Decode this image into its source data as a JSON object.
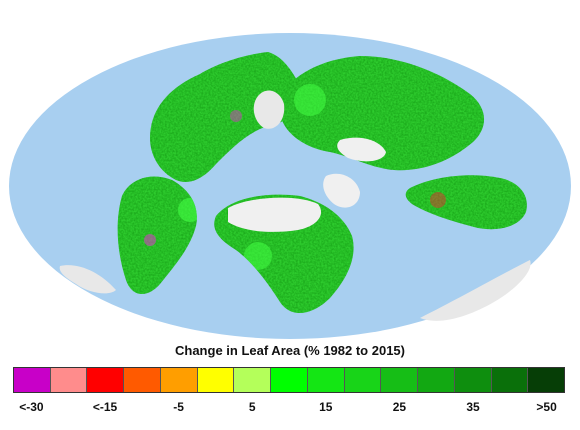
{
  "legend": {
    "title": "Change in Leaf Area (% 1982 to 2015)",
    "colors": [
      "#c800c8",
      "#ff8c8c",
      "#ff0000",
      "#ff5a00",
      "#ff9e00",
      "#ffff00",
      "#b4ff5a",
      "#00ff00",
      "#14e614",
      "#18d418",
      "#16be16",
      "#12a812",
      "#0e8e0e",
      "#0a700a",
      "#063e06"
    ],
    "tick_labels": [
      "<-30",
      "<-15",
      "-5",
      "5",
      "15",
      "25",
      "35",
      ">50"
    ]
  },
  "map_colors": {
    "ocean": "#a8cff0",
    "land_green": "#2ecc2e",
    "dark_green": "#0d7a0d",
    "bright_green": "#44ff44",
    "ice": "#e8e8e8",
    "desert": "#f0f0f0",
    "red": "#e03030",
    "magenta": "#d040c0"
  }
}
